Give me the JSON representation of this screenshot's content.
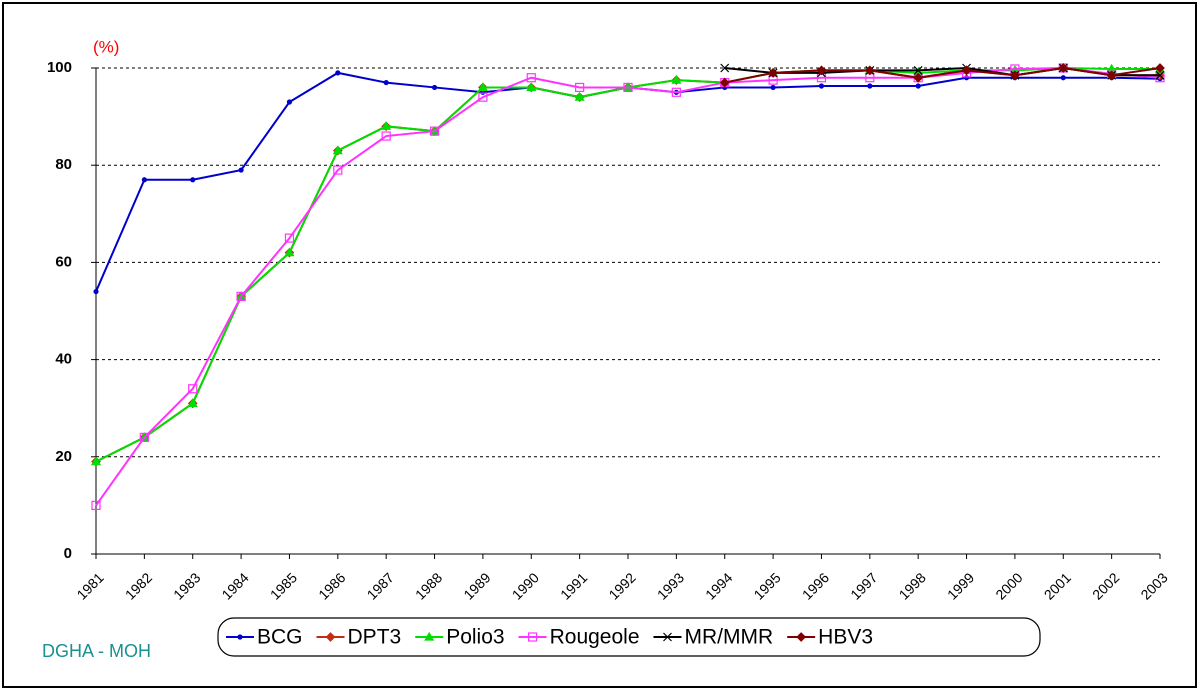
{
  "chart_data": {
    "type": "line",
    "ylabel": "(%)",
    "source": "DGHA - MOH",
    "categories": [
      "1981",
      "1982",
      "1983",
      "1984",
      "1985",
      "1986",
      "1987",
      "1988",
      "1989",
      "1990",
      "1991",
      "1992",
      "1993",
      "1994",
      "1995",
      "1996",
      "1997",
      "1998",
      "1999",
      "2000",
      "2001",
      "2002",
      "2003"
    ],
    "ylim": [
      0,
      100
    ],
    "yticks": [
      0,
      20,
      40,
      60,
      80,
      100
    ],
    "grid": true,
    "legend": "bottom",
    "series": [
      {
        "name": "BCG",
        "color": "#0000cc",
        "marker": "dot",
        "values": [
          54,
          77,
          77,
          79,
          93,
          99,
          97,
          96,
          95,
          96,
          94,
          96,
          95,
          96,
          96,
          96.3,
          96.3,
          96.3,
          98,
          98,
          98,
          98,
          97.8
        ]
      },
      {
        "name": "DPT3",
        "color": "#c03010",
        "marker": "diamond",
        "values": [
          19,
          24,
          31,
          53,
          62,
          83,
          88,
          87,
          96,
          96,
          94,
          96,
          97.5,
          97,
          99,
          99.5,
          99.5,
          98,
          99.5,
          98.5,
          100,
          98.5,
          98.5
        ]
      },
      {
        "name": "Polio3",
        "color": "#00dd00",
        "marker": "triangle",
        "values": [
          19,
          24,
          31,
          53,
          62,
          83,
          88,
          87,
          96,
          96,
          94,
          96,
          97.5,
          97,
          99,
          99.5,
          99.5,
          99,
          99.5,
          99.5,
          100,
          99.8,
          99.8
        ]
      },
      {
        "name": "Rougeole",
        "color": "#ff33ff",
        "marker": "square",
        "values": [
          10,
          24,
          34,
          53,
          65,
          79,
          86,
          87,
          94,
          98,
          96,
          96,
          95,
          97,
          97.5,
          98,
          98,
          98,
          99,
          99.8,
          100,
          98.8,
          98
        ]
      },
      {
        "name": "MR/MMR",
        "color": "#000000",
        "marker": "cross",
        "values": [
          null,
          null,
          null,
          null,
          null,
          null,
          null,
          null,
          null,
          null,
          null,
          null,
          null,
          100,
          99,
          99,
          99.5,
          99.5,
          100,
          98.5,
          100,
          98.5,
          98.5
        ]
      },
      {
        "name": "HBV3",
        "color": "#800000",
        "marker": "diamond",
        "values": [
          null,
          null,
          null,
          null,
          null,
          null,
          null,
          null,
          null,
          null,
          null,
          null,
          null,
          97,
          99,
          99.5,
          99.5,
          98,
          99.5,
          98.5,
          100,
          98.5,
          100
        ]
      }
    ]
  }
}
